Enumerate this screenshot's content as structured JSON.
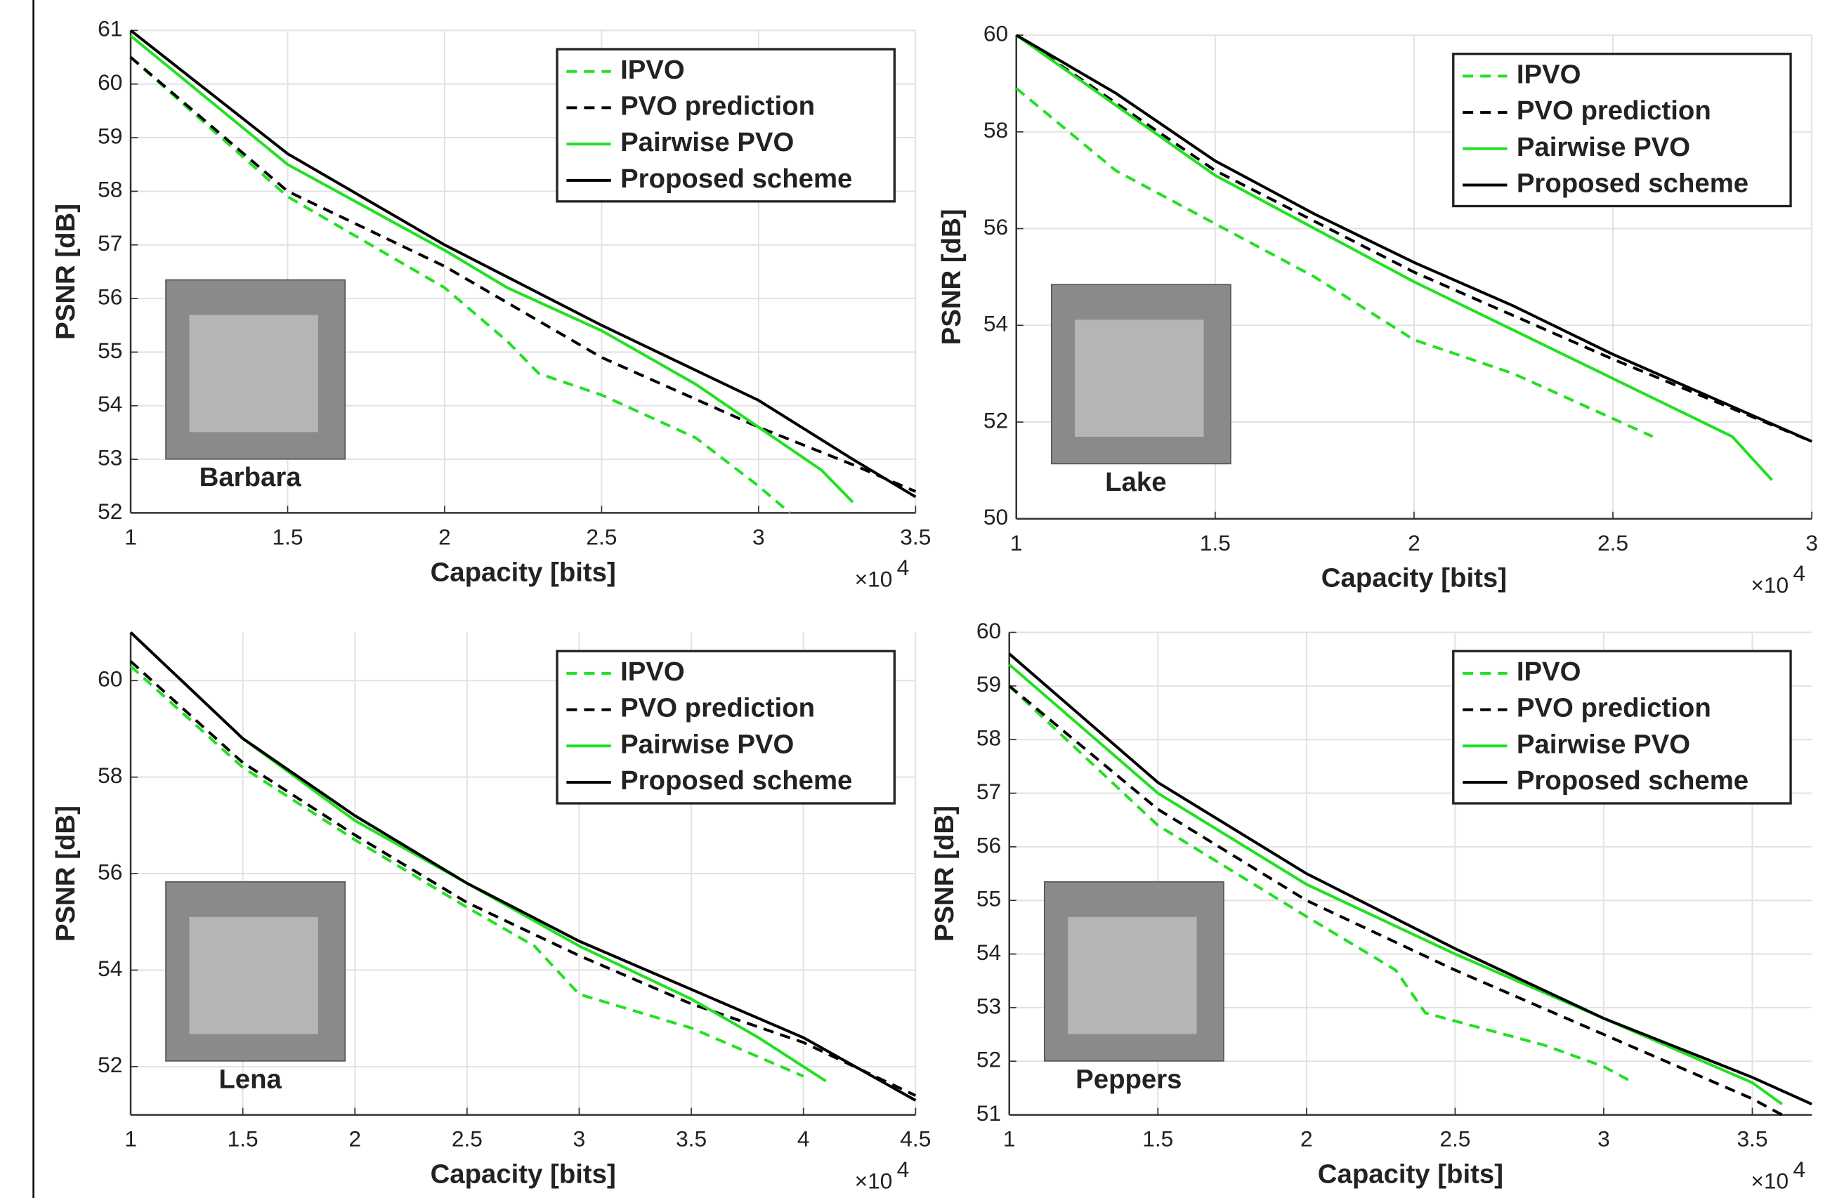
{
  "chart_data": [
    {
      "type": "line",
      "xlabel": "Capacity [bits]",
      "ylabel": "PSNR [dB]",
      "x_multiplier": {
        "base": "×10",
        "exponent": "4"
      },
      "inset_label": "Barbara",
      "xlim": [
        1,
        3.5
      ],
      "xticks": [
        1,
        1.5,
        2,
        2.5,
        3,
        3.5
      ],
      "ylim": [
        52,
        61
      ],
      "yticks": [
        52,
        53,
        54,
        55,
        56,
        57,
        58,
        59,
        60,
        61
      ],
      "grid": true,
      "legend": "upper right",
      "series": [
        {
          "name": "IPVO",
          "color": "#22e022",
          "dashed": true,
          "x": [
            1,
            1.5,
            2,
            2.2,
            2.3,
            2.5,
            2.8,
            3,
            3.1
          ],
          "values": [
            60.5,
            57.9,
            56.2,
            55.2,
            54.6,
            54.2,
            53.4,
            52.5,
            52.0
          ]
        },
        {
          "name": "PVO prediction",
          "color": "#000000",
          "dashed": true,
          "x": [
            1,
            1.5,
            2,
            2.5,
            3,
            3.3,
            3.5
          ],
          "values": [
            60.5,
            58.0,
            56.6,
            54.9,
            53.6,
            52.9,
            52.4
          ]
        },
        {
          "name": "Pairwise PVO",
          "color": "#22e022",
          "dashed": false,
          "x": [
            1,
            1.5,
            2,
            2.2,
            2.5,
            2.8,
            3,
            3.2,
            3.3
          ],
          "values": [
            60.9,
            58.5,
            56.9,
            56.2,
            55.4,
            54.4,
            53.6,
            52.8,
            52.2
          ]
        },
        {
          "name": "Proposed scheme",
          "color": "#000000",
          "dashed": false,
          "x": [
            1,
            1.5,
            2,
            2.5,
            3,
            3.3,
            3.5
          ],
          "values": [
            61.0,
            58.7,
            57.0,
            55.5,
            54.1,
            53.0,
            52.3
          ]
        }
      ]
    },
    {
      "type": "line",
      "xlabel": "Capacity [bits]",
      "ylabel": "PSNR [dB]",
      "x_multiplier": {
        "base": "×10",
        "exponent": "4"
      },
      "inset_label": "Lake",
      "xlim": [
        1,
        3
      ],
      "xticks": [
        1,
        1.5,
        2,
        2.5,
        3
      ],
      "ylim": [
        50,
        60
      ],
      "yticks": [
        50,
        52,
        54,
        56,
        58,
        60
      ],
      "grid": true,
      "legend": "upper right",
      "series": [
        {
          "name": "IPVO",
          "color": "#22e022",
          "dashed": true,
          "x": [
            1,
            1.25,
            1.5,
            1.75,
            2,
            2.25,
            2.6
          ],
          "values": [
            58.9,
            57.2,
            56.1,
            55.0,
            53.7,
            53.0,
            51.7
          ]
        },
        {
          "name": "PVO prediction",
          "color": "#000000",
          "dashed": true,
          "x": [
            1,
            1.5,
            2,
            2.5,
            3
          ],
          "values": [
            60.0,
            57.2,
            55.1,
            53.3,
            51.6
          ]
        },
        {
          "name": "Pairwise PVO",
          "color": "#22e022",
          "dashed": false,
          "x": [
            1,
            1.5,
            2,
            2.5,
            2.8,
            2.9
          ],
          "values": [
            60.0,
            57.1,
            54.9,
            52.9,
            51.7,
            50.8
          ]
        },
        {
          "name": "Proposed scheme",
          "color": "#000000",
          "dashed": false,
          "x": [
            1,
            1.25,
            1.5,
            1.75,
            2,
            2.25,
            2.5,
            2.75,
            3
          ],
          "values": [
            60.0,
            58.8,
            57.4,
            56.3,
            55.3,
            54.4,
            53.4,
            52.5,
            51.6
          ]
        }
      ]
    },
    {
      "type": "line",
      "xlabel": "Capacity [bits]",
      "ylabel": "PSNR [dB]",
      "x_multiplier": {
        "base": "×10",
        "exponent": "4"
      },
      "inset_label": "Lena",
      "xlim": [
        1,
        4.5
      ],
      "xticks": [
        1,
        1.5,
        2,
        2.5,
        3,
        3.5,
        4,
        4.5
      ],
      "ylim": [
        51,
        61
      ],
      "yticks": [
        52,
        54,
        56,
        58,
        60
      ],
      "grid": true,
      "legend": "upper right",
      "series": [
        {
          "name": "IPVO",
          "color": "#22e022",
          "dashed": true,
          "x": [
            1,
            1.5,
            2,
            2.5,
            2.8,
            3,
            3.5,
            4
          ],
          "values": [
            60.3,
            58.2,
            56.7,
            55.3,
            54.5,
            53.5,
            52.8,
            51.8
          ]
        },
        {
          "name": "PVO prediction",
          "color": "#000000",
          "dashed": true,
          "x": [
            1,
            1.5,
            2,
            2.5,
            3,
            3.5,
            4,
            4.5
          ],
          "values": [
            60.4,
            58.3,
            56.8,
            55.4,
            54.3,
            53.3,
            52.5,
            51.4
          ]
        },
        {
          "name": "Pairwise PVO",
          "color": "#22e022",
          "dashed": false,
          "x": [
            1,
            1.5,
            2,
            2.5,
            3,
            3.5,
            3.8,
            4.1
          ],
          "values": [
            61.0,
            58.8,
            57.1,
            55.8,
            54.5,
            53.4,
            52.6,
            51.7
          ]
        },
        {
          "name": "Proposed scheme",
          "color": "#000000",
          "dashed": false,
          "x": [
            1,
            1.5,
            2,
            2.5,
            3,
            3.5,
            4,
            4.5
          ],
          "values": [
            61.0,
            58.8,
            57.2,
            55.8,
            54.6,
            53.6,
            52.6,
            51.3
          ]
        }
      ]
    },
    {
      "type": "line",
      "xlabel": "Capacity [bits]",
      "ylabel": "PSNR [dB]",
      "x_multiplier": {
        "base": "×10",
        "exponent": "4"
      },
      "inset_label": "Peppers",
      "xlim": [
        1,
        3.7
      ],
      "xticks": [
        1,
        1.5,
        2,
        2.5,
        3,
        3.5
      ],
      "ylim": [
        51,
        60
      ],
      "yticks": [
        51,
        52,
        53,
        54,
        55,
        56,
        57,
        58,
        59,
        60
      ],
      "grid": true,
      "legend": "upper right",
      "series": [
        {
          "name": "IPVO",
          "color": "#22e022",
          "dashed": true,
          "x": [
            1,
            1.5,
            2,
            2.3,
            2.4,
            2.8,
            3,
            3.1
          ],
          "values": [
            59.0,
            56.4,
            54.7,
            53.7,
            52.9,
            52.3,
            51.9,
            51.6
          ]
        },
        {
          "name": "PVO prediction",
          "color": "#000000",
          "dashed": true,
          "x": [
            1,
            1.5,
            2,
            2.5,
            3,
            3.5,
            3.6
          ],
          "values": [
            59.0,
            56.7,
            55.0,
            53.7,
            52.5,
            51.3,
            51.0
          ]
        },
        {
          "name": "Pairwise PVO",
          "color": "#22e022",
          "dashed": false,
          "x": [
            1,
            1.5,
            2,
            2.5,
            3,
            3.5,
            3.6
          ],
          "values": [
            59.4,
            57.0,
            55.3,
            54.0,
            52.8,
            51.6,
            51.2
          ]
        },
        {
          "name": "Proposed scheme",
          "color": "#000000",
          "dashed": false,
          "x": [
            1,
            1.5,
            2,
            2.5,
            3,
            3.5,
            3.7
          ],
          "values": [
            59.6,
            57.2,
            55.5,
            54.1,
            52.8,
            51.7,
            51.2
          ]
        }
      ]
    }
  ]
}
